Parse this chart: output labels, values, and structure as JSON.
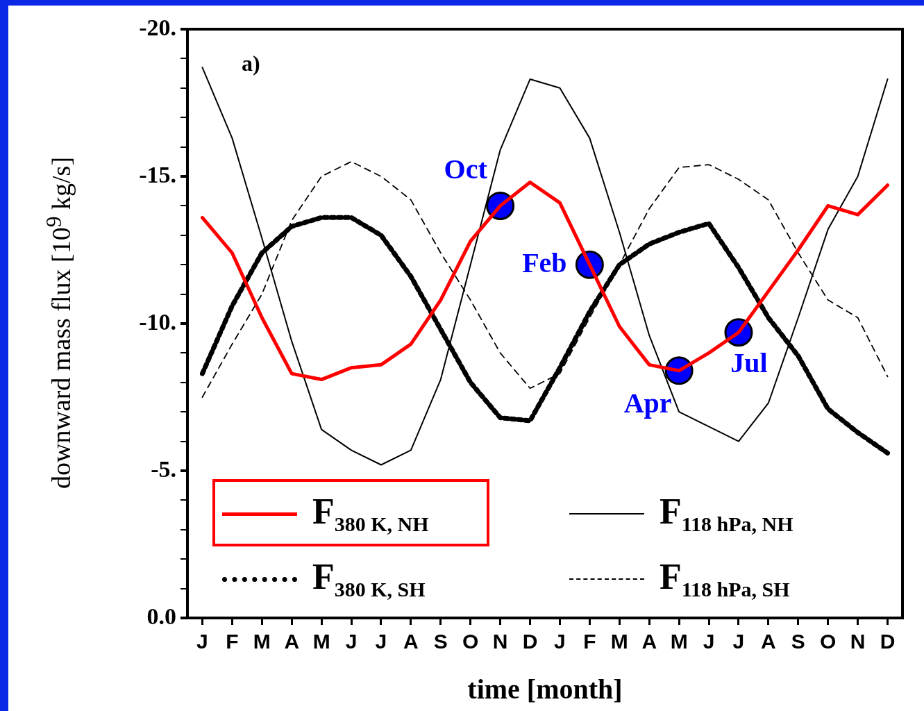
{
  "chart_data": {
    "type": "line",
    "xlabel": "time [month]",
    "ylabel": "downward mass flux [10$^{9}$ kg/s]",
    "categories": [
      "J",
      "F",
      "M",
      "A",
      "M",
      "J",
      "J",
      "A",
      "S",
      "O",
      "N",
      "D",
      "J",
      "F",
      "M",
      "A",
      "M",
      "J",
      "J",
      "A",
      "S",
      "O",
      "N",
      "D"
    ],
    "ylim": [
      0,
      -20
    ],
    "yticks": [
      {
        "value": -20,
        "label": "-20."
      },
      {
        "value": -19,
        "label": null
      },
      {
        "value": -18,
        "label": null
      },
      {
        "value": -17,
        "label": null
      },
      {
        "value": -16,
        "label": null
      },
      {
        "value": -15,
        "label": "-15."
      },
      {
        "value": -14,
        "label": null
      },
      {
        "value": -13,
        "label": null
      },
      {
        "value": -12,
        "label": null
      },
      {
        "value": -11,
        "label": null
      },
      {
        "value": -10,
        "label": "-10."
      },
      {
        "value": -9,
        "label": null
      },
      {
        "value": -8,
        "label": null
      },
      {
        "value": -7,
        "label": null
      },
      {
        "value": -6,
        "label": null
      },
      {
        "value": -5,
        "label": "-5."
      },
      {
        "value": -4,
        "label": null
      },
      {
        "value": -3,
        "label": null
      },
      {
        "value": -2,
        "label": null
      },
      {
        "value": -1,
        "label": null
      },
      {
        "value": 0,
        "label": "0.0"
      }
    ],
    "grid": false,
    "legend": "bottom",
    "series": [
      {
        "name": "F$_{380 K, NH}$",
        "color": "#ff0000",
        "line_style": "solid",
        "marker": "none",
        "values": [
          -13.6,
          -12.4,
          -10.2,
          -8.3,
          -8.1,
          -8.5,
          -8.6,
          -9.3,
          -10.8,
          -12.8,
          -14.0,
          -14.8,
          -14.1,
          -12.0,
          -9.9,
          -8.6,
          -8.4,
          -9.0,
          -9.7,
          -11.1,
          -12.5,
          -14.0,
          -13.7,
          -14.7
        ]
      },
      {
        "name": "F$_{118 hPa, NH}$",
        "color": "#000000",
        "line_style": "solid",
        "marker": "none",
        "values": [
          -18.7,
          -16.3,
          -12.9,
          -9.4,
          -6.4,
          -5.7,
          -5.2,
          -5.7,
          -8.1,
          -12.0,
          -15.9,
          -18.3,
          -18.0,
          -16.3,
          -13.1,
          -9.6,
          -7.0,
          -6.5,
          -6.0,
          -7.3,
          -10.2,
          -13.2,
          -15.0,
          -18.3
        ]
      },
      {
        "name": "F$_{380 K, SH}$",
        "color": "#000000",
        "line_style": "dotted",
        "marker": "none",
        "values": [
          -8.3,
          -10.6,
          -12.4,
          -13.3,
          -13.6,
          -13.6,
          -13.0,
          -11.6,
          -9.8,
          -8.0,
          -6.8,
          -6.7,
          -8.5,
          -10.4,
          -12.0,
          -12.7,
          -13.1,
          -13.4,
          -11.9,
          -10.2,
          -8.9,
          -7.1,
          -6.3,
          -5.6
        ]
      },
      {
        "name": "F$_{118 hPa, SH}$",
        "color": "#000000",
        "line_style": "dashed",
        "marker": "none",
        "values": [
          -7.5,
          -9.3,
          -11.0,
          -13.5,
          -15.0,
          -15.5,
          -15.0,
          -14.2,
          -12.4,
          -10.8,
          -9.0,
          -7.8,
          -8.3,
          -10.2,
          -12.0,
          -13.9,
          -15.3,
          -15.4,
          -14.9,
          -14.2,
          -12.4,
          -10.8,
          -10.2,
          -8.2
        ]
      },
      {
        "type": "scatter",
        "color": "#0000ff",
        "marker": "circle",
        "values": [
          null,
          null,
          null,
          null,
          null,
          null,
          null,
          null,
          null,
          null,
          -14.0,
          null,
          null,
          -12.0,
          null,
          null,
          -8.4,
          null,
          -9.7,
          null,
          null,
          null,
          null,
          null
        ]
      }
    ],
    "annotations": [
      "a)",
      "Oct",
      "Feb",
      "Apr",
      "Jul"
    ]
  }
}
